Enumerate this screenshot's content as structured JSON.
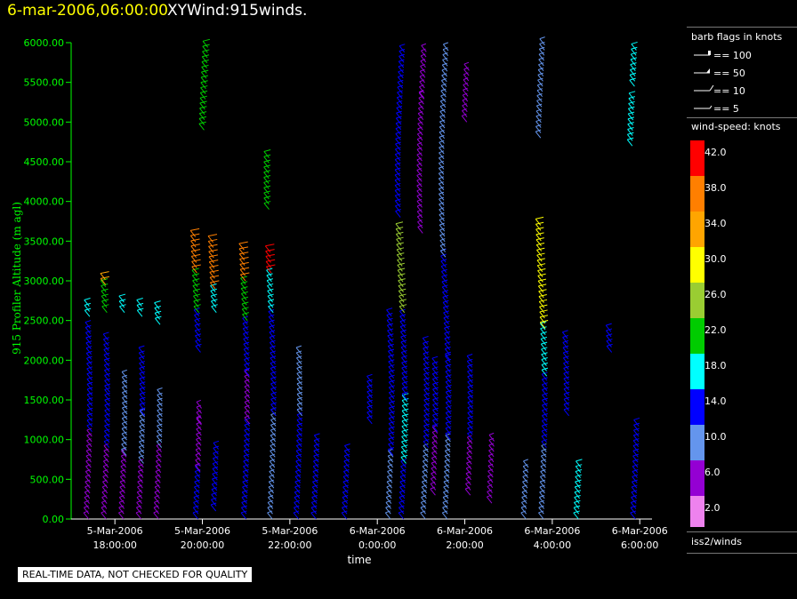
{
  "header": {
    "date": "6-mar-2006,06:00:00",
    "title": "XYWind:915winds."
  },
  "disclaimer": "REAL-TIME DATA, NOT CHECKED FOR QUALITY",
  "legend": {
    "barb_title": "barb flags in knots",
    "barb_items": [
      "== 100",
      "== 50",
      "== 10",
      "== 5"
    ],
    "speed_title": "wind-speed: knots",
    "scale": [
      {
        "label": "42.0",
        "color": "#ff0000"
      },
      {
        "label": "38.0",
        "color": "#ff7f00"
      },
      {
        "label": "34.0",
        "color": "#ffa500"
      },
      {
        "label": "30.0",
        "color": "#ffff00"
      },
      {
        "label": "26.0",
        "color": "#9acd32"
      },
      {
        "label": "22.0",
        "color": "#00cc00"
      },
      {
        "label": "18.0",
        "color": "#00ffff"
      },
      {
        "label": "14.0",
        "color": "#0000ff"
      },
      {
        "label": "10.0",
        "color": "#6495ed"
      },
      {
        "label": "6.0",
        "color": "#9400d3"
      },
      {
        "label": "2.0",
        "color": "#ee82ee"
      }
    ],
    "source": "iss2/winds"
  },
  "chart_data": {
    "type": "scatter",
    "title": "XYWind:915winds.",
    "xlabel": "time",
    "ylabel": "915 Profiler Altitude (m agl)",
    "ylim": [
      0,
      6000
    ],
    "xlim": [
      "5-Mar-2006 17:00:00",
      "6-Mar-2006 06:17:00"
    ],
    "yticks": [
      "0.00",
      "500.00",
      "1000.00",
      "1500.00",
      "2000.00",
      "2500.00",
      "3000.00",
      "3500.00",
      "4000.00",
      "4500.00",
      "5000.00",
      "5500.00",
      "6000.00"
    ],
    "xticks": [
      {
        "hour": 18,
        "date": "5-Mar-2006",
        "time": "18:00:00"
      },
      {
        "hour": 20,
        "date": "5-Mar-2006",
        "time": "20:00:00"
      },
      {
        "hour": 22,
        "date": "5-Mar-2006",
        "time": "22:00:00"
      },
      {
        "hour": 24,
        "date": "6-Mar-2006",
        "time": "0:00:00"
      },
      {
        "hour": 26,
        "date": "6-Mar-2006",
        "time": "2:00:00"
      },
      {
        "hour": 28,
        "date": "6-Mar-2006",
        "time": "4:00:00"
      },
      {
        "hour": 30,
        "date": "6-Mar-2006",
        "time": "6:00:00"
      }
    ],
    "series_note": "hour = hours after 5-Mar-2006 00:00; profile segments with altitude range (m agl) and wind speed (knots)",
    "profiles": [
      {
        "hour": 17.4,
        "segments": [
          [
            0,
            1100,
            7
          ],
          [
            1100,
            2400,
            13
          ],
          [
            2550,
            2700,
            17
          ]
        ]
      },
      {
        "hour": 17.8,
        "segments": [
          [
            0,
            900,
            5
          ],
          [
            900,
            1600,
            12
          ],
          [
            1600,
            2300,
            14
          ],
          [
            2600,
            2950,
            22
          ],
          [
            2950,
            3050,
            34
          ]
        ]
      },
      {
        "hour": 18.2,
        "segments": [
          [
            0,
            800,
            7
          ],
          [
            800,
            1800,
            10
          ],
          [
            2600,
            2750,
            19
          ]
        ]
      },
      {
        "hour": 18.6,
        "segments": [
          [
            0,
            700,
            7
          ],
          [
            700,
            1300,
            11
          ],
          [
            1300,
            2100,
            14
          ],
          [
            2550,
            2700,
            18
          ]
        ]
      },
      {
        "hour": 19.0,
        "segments": [
          [
            0,
            900,
            6
          ],
          [
            900,
            1600,
            11
          ],
          [
            2450,
            2650,
            18
          ]
        ]
      },
      {
        "hour": 19.9,
        "segments": [
          [
            0,
            600,
            12
          ],
          [
            600,
            1200,
            6
          ],
          [
            1200,
            1400,
            5
          ],
          [
            2100,
            2600,
            15
          ],
          [
            2600,
            3100,
            22
          ],
          [
            3100,
            3600,
            36
          ]
        ]
      },
      {
        "hour": 20.3,
        "segments": [
          [
            100,
            900,
            12
          ],
          [
            2600,
            2900,
            18
          ],
          [
            2900,
            3500,
            38
          ]
        ]
      },
      {
        "hour": 20.1,
        "segments": [
          [
            4900,
            5950,
            23
          ]
        ]
      },
      {
        "hour": 21.0,
        "segments": [
          [
            0,
            1200,
            14
          ],
          [
            1200,
            1800,
            7
          ],
          [
            1800,
            2500,
            13
          ],
          [
            2500,
            3000,
            20
          ],
          [
            3000,
            3450,
            37
          ]
        ]
      },
      {
        "hour": 21.6,
        "segments": [
          [
            0,
            1300,
            9
          ],
          [
            1300,
            2600,
            13
          ],
          [
            2600,
            3100,
            16
          ],
          [
            3100,
            3400,
            42
          ],
          [
            3900,
            4600,
            20
          ]
        ]
      },
      {
        "hour": 22.2,
        "segments": [
          [
            0,
            1300,
            12
          ],
          [
            1300,
            2100,
            11
          ]
        ]
      },
      {
        "hour": 22.6,
        "segments": [
          [
            0,
            1000,
            13
          ]
        ]
      },
      {
        "hour": 23.3,
        "segments": [
          [
            0,
            900,
            13
          ]
        ]
      },
      {
        "hour": 23.8,
        "segments": [
          [
            1200,
            1750,
            12
          ]
        ]
      },
      {
        "hour": 24.3,
        "segments": [
          [
            0,
            800,
            8
          ],
          [
            800,
            2600,
            15
          ]
        ]
      },
      {
        "hour": 24.6,
        "segments": [
          [
            0,
            700,
            12
          ],
          [
            700,
            1500,
            19
          ],
          [
            1500,
            2600,
            14
          ],
          [
            2600,
            3700,
            24
          ],
          [
            3800,
            5900,
            13
          ]
        ]
      },
      {
        "hour": 25.1,
        "segments": [
          [
            0,
            900,
            9
          ],
          [
            900,
            2200,
            14
          ],
          [
            3600,
            5300,
            6
          ],
          [
            5300,
            5900,
            7
          ]
        ]
      },
      {
        "hour": 25.3,
        "segments": [
          [
            300,
            1100,
            6
          ],
          [
            1100,
            2000,
            14
          ]
        ]
      },
      {
        "hour": 25.6,
        "segments": [
          [
            0,
            1000,
            10
          ],
          [
            1000,
            2000,
            14
          ],
          [
            2000,
            3300,
            14
          ],
          [
            3300,
            5900,
            9
          ]
        ]
      },
      {
        "hour": 26.1,
        "segments": [
          [
            300,
            1000,
            6
          ],
          [
            1000,
            2000,
            12
          ],
          [
            5000,
            5700,
            7
          ]
        ]
      },
      {
        "hour": 26.6,
        "segments": [
          [
            200,
            1000,
            7
          ]
        ]
      },
      {
        "hour": 27.4,
        "segments": [
          [
            0,
            700,
            8
          ]
        ]
      },
      {
        "hour": 27.8,
        "segments": [
          [
            0,
            900,
            10
          ],
          [
            900,
            1800,
            14
          ],
          [
            1800,
            2400,
            17
          ],
          [
            2400,
            3700,
            29
          ],
          [
            4800,
            6000,
            11
          ]
        ]
      },
      {
        "hour": 28.3,
        "segments": [
          [
            1300,
            2300,
            13
          ]
        ]
      },
      {
        "hour": 28.6,
        "segments": [
          [
            0,
            700,
            18
          ]
        ]
      },
      {
        "hour": 29.3,
        "segments": [
          [
            2100,
            2400,
            15
          ]
        ]
      },
      {
        "hour": 29.9,
        "segments": [
          [
            0,
            1200,
            14
          ],
          [
            4700,
            5300,
            18
          ],
          [
            5450,
            5950,
            17
          ]
        ]
      }
    ]
  }
}
